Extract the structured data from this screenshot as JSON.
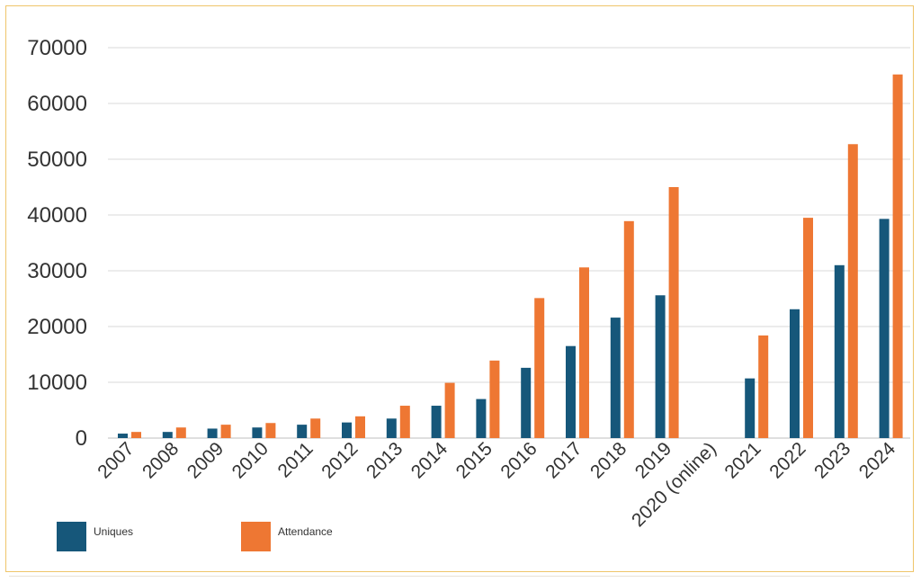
{
  "chart_data": {
    "type": "bar",
    "title": "",
    "xlabel": "",
    "ylabel": "",
    "ylim": [
      0,
      70000
    ],
    "yticks": [
      0,
      10000,
      20000,
      30000,
      40000,
      50000,
      60000,
      70000
    ],
    "grid": true,
    "legend_position": "bottom-left",
    "categories": [
      "2007",
      "2008",
      "2009",
      "2010",
      "2011",
      "2012",
      "2013",
      "2014",
      "2015",
      "2016",
      "2017",
      "2018",
      "2019",
      "2020 (online)",
      "2021",
      "2022",
      "2023",
      "2024"
    ],
    "series": [
      {
        "name": "Uniques",
        "color": "#16577a",
        "values": [
          800,
          1100,
          1700,
          1900,
          2400,
          2800,
          3500,
          5800,
          7000,
          12600,
          16500,
          21600,
          25600,
          null,
          10700,
          23100,
          31000,
          39300
        ]
      },
      {
        "name": "Attendance",
        "color": "#ee7733",
        "values": [
          1100,
          1900,
          2400,
          2700,
          3500,
          3900,
          5800,
          9900,
          13900,
          25100,
          30600,
          38900,
          45000,
          null,
          18400,
          39500,
          52700,
          65200
        ]
      }
    ]
  }
}
